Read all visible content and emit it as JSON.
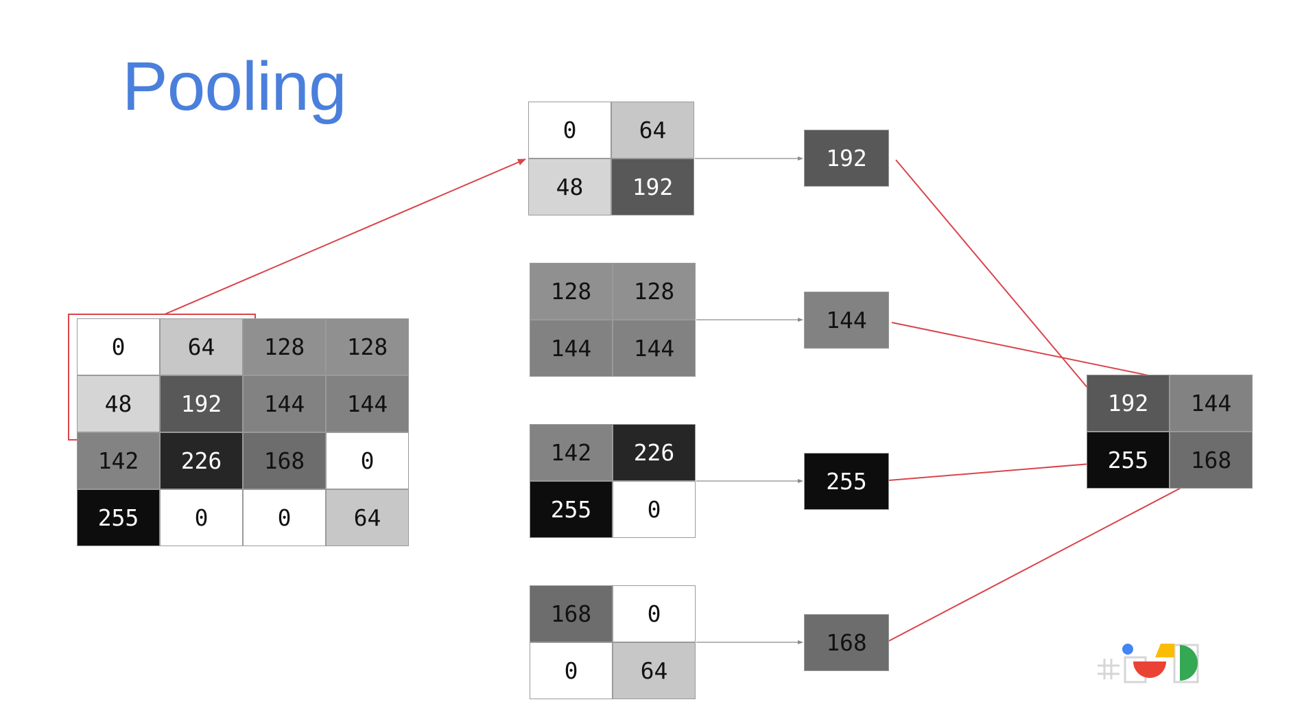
{
  "title": "Pooling",
  "input_grid": [
    [
      0,
      64,
      128,
      128
    ],
    [
      48,
      192,
      144,
      144
    ],
    [
      142,
      226,
      168,
      0
    ],
    [
      255,
      0,
      0,
      64
    ]
  ],
  "blocks": [
    {
      "cells": [
        [
          0,
          64
        ],
        [
          48,
          192
        ]
      ],
      "max": 192
    },
    {
      "cells": [
        [
          128,
          128
        ],
        [
          144,
          144
        ]
      ],
      "max": 144
    },
    {
      "cells": [
        [
          142,
          226
        ],
        [
          255,
          0
        ]
      ],
      "max": 255
    },
    {
      "cells": [
        [
          168,
          0
        ],
        [
          0,
          64
        ]
      ],
      "max": 168
    }
  ],
  "output_grid": [
    [
      192,
      144
    ],
    [
      255,
      168
    ]
  ],
  "colors": {
    "title": "#4a7fdc",
    "arrow": "#d9444b",
    "connector": "#8a8a8a",
    "logo_blue": "#4285f4",
    "logo_red": "#ea4335",
    "logo_yellow": "#fbbc04",
    "logo_green": "#34a853"
  },
  "logo": {
    "name": "google-io-logo"
  }
}
